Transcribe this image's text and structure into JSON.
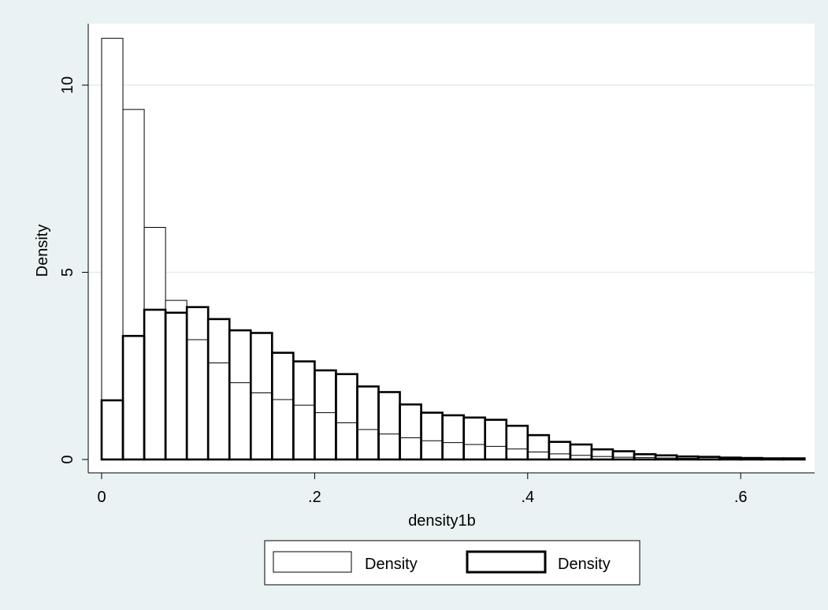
{
  "chart_data": {
    "type": "bar",
    "title": "",
    "xlabel": "density1b",
    "ylabel": "Density",
    "xlim": [
      0,
      0.66
    ],
    "ylim": [
      0,
      11.3
    ],
    "x_ticks": [
      {
        "value": 0,
        "label": "0"
      },
      {
        "value": 0.2,
        "label": ".2"
      },
      {
        "value": 0.4,
        "label": ".4"
      },
      {
        "value": 0.6,
        "label": ".6"
      }
    ],
    "y_ticks": [
      {
        "value": 0,
        "label": "0"
      },
      {
        "value": 5,
        "label": "5"
      },
      {
        "value": 10,
        "label": "10"
      }
    ],
    "grid": "horizontal",
    "legend_position": "bottom",
    "bin_width": 0.02,
    "bin_starts": [
      0,
      0.02,
      0.04,
      0.06,
      0.08,
      0.1,
      0.12,
      0.14,
      0.16,
      0.18,
      0.2,
      0.22,
      0.24,
      0.26,
      0.28,
      0.3,
      0.32,
      0.34,
      0.36,
      0.38,
      0.4,
      0.42,
      0.44,
      0.46,
      0.48,
      0.5,
      0.52,
      0.54,
      0.56,
      0.58,
      0.6,
      0.62,
      0.64
    ],
    "series": [
      {
        "name": "Density",
        "style": "thin",
        "values": [
          11.25,
          9.35,
          6.2,
          4.25,
          3.2,
          2.58,
          2.05,
          1.78,
          1.6,
          1.45,
          1.25,
          0.98,
          0.8,
          0.68,
          0.58,
          0.5,
          0.45,
          0.4,
          0.35,
          0.28,
          0.2,
          0.15,
          0.11,
          0.08,
          0.06,
          0.05,
          0.04,
          0.03,
          0.02,
          0.02,
          0.01,
          0.01,
          0.01
        ]
      },
      {
        "name": "Density",
        "style": "thick",
        "values": [
          1.58,
          3.3,
          4.0,
          3.92,
          4.07,
          3.75,
          3.45,
          3.38,
          2.85,
          2.62,
          2.38,
          2.28,
          1.95,
          1.8,
          1.47,
          1.25,
          1.18,
          1.12,
          1.06,
          0.9,
          0.65,
          0.47,
          0.4,
          0.27,
          0.22,
          0.14,
          0.11,
          0.08,
          0.07,
          0.05,
          0.04,
          0.03,
          0.03
        ]
      }
    ]
  }
}
